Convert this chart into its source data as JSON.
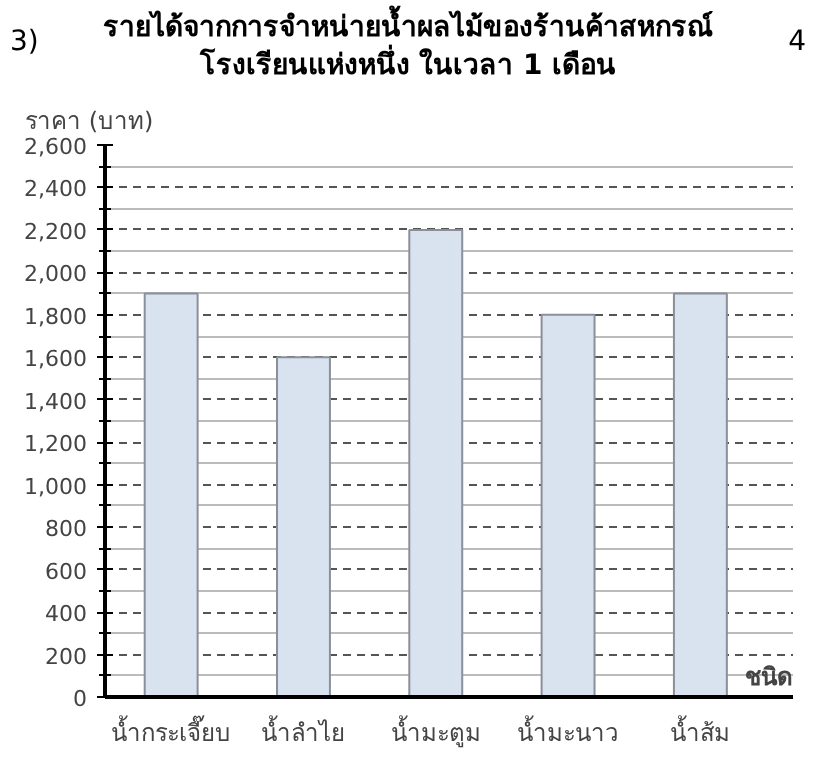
{
  "chart_data": {
    "type": "bar",
    "title": "รายได้จากการจำหน่ายน้ำผลไม้ของร้านค้าสหกรณ์\nโรงเรียนแห่งหนึ่ง ในเวลา 1 เดือน",
    "ylabel": "ราคา (บาท)",
    "xlabel": "ชนิด",
    "categories": [
      "น้ำกระเจี๊ยบ",
      "น้ำลำไย",
      "น้ำมะตูม",
      "น้ำมะนาว",
      "น้ำส้ม"
    ],
    "values": [
      1900,
      1600,
      2200,
      1800,
      1900
    ],
    "color": "#d9e3f0",
    "ylim": [
      0,
      2600
    ],
    "yticks": [
      {
        "value": 0,
        "label": "0"
      },
      {
        "value": 200,
        "label": "200"
      },
      {
        "value": 400,
        "label": "400"
      },
      {
        "value": 600,
        "label": "600"
      },
      {
        "value": 800,
        "label": "800"
      },
      {
        "value": 1000,
        "label": "1,000"
      },
      {
        "value": 1200,
        "label": "1,200"
      },
      {
        "value": 1400,
        "label": "1,400"
      },
      {
        "value": 1600,
        "label": "1,600"
      },
      {
        "value": 1800,
        "label": "1,800"
      },
      {
        "value": 2000,
        "label": "2,000"
      },
      {
        "value": 2200,
        "label": "2,200"
      },
      {
        "value": 2400,
        "label": "2,400"
      },
      {
        "value": 2600,
        "label": "2,600"
      }
    ],
    "grid": "y",
    "annotations": [
      "3)",
      "4"
    ]
  }
}
